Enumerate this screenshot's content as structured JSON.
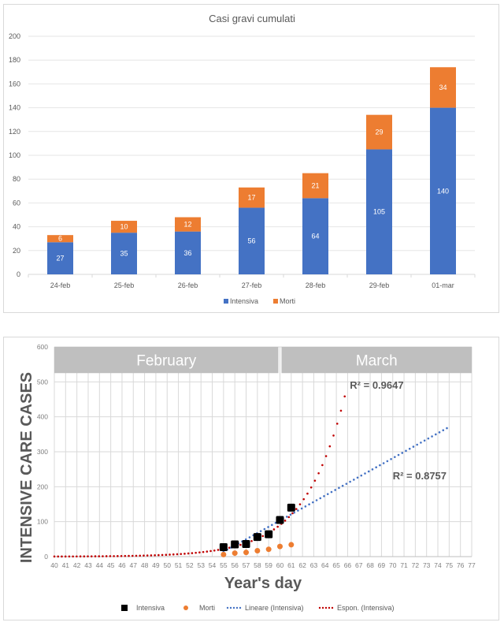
{
  "chart_data": [
    {
      "type": "bar",
      "stacked": true,
      "title": "Casi gravi cumulati",
      "xlabel": "",
      "ylabel": "",
      "ylim": [
        0,
        200
      ],
      "yticks": [
        0,
        20,
        40,
        60,
        80,
        100,
        120,
        140,
        160,
        180,
        200
      ],
      "grid": true,
      "legend_position": "bottom",
      "categories": [
        "24-feb",
        "25-feb",
        "26-feb",
        "27-feb",
        "28-feb",
        "29-feb",
        "01-mar"
      ],
      "series": [
        {
          "name": "Intensiva",
          "color": "#4472c4",
          "values": [
            27,
            35,
            36,
            56,
            64,
            105,
            140
          ]
        },
        {
          "name": "Morti",
          "color": "#ed7d31",
          "values": [
            6,
            10,
            12,
            17,
            21,
            29,
            34
          ]
        }
      ]
    },
    {
      "type": "scatter",
      "title": "",
      "xlabel": "Year's day",
      "ylabel": "INTENSIVE CARE CASES",
      "xlim": [
        40,
        77
      ],
      "ylim": [
        0,
        600
      ],
      "xticks": [
        40,
        41,
        42,
        43,
        44,
        45,
        46,
        47,
        48,
        49,
        50,
        51,
        52,
        53,
        54,
        55,
        56,
        57,
        58,
        59,
        60,
        61,
        62,
        63,
        64,
        65,
        66,
        67,
        68,
        69,
        70,
        71,
        72,
        73,
        74,
        75,
        76,
        77
      ],
      "yticks": [
        0,
        100,
        200,
        300,
        400,
        500,
        600
      ],
      "grid": true,
      "legend_position": "bottom",
      "month_bands": [
        {
          "label": "February",
          "from": 40,
          "to": 60
        },
        {
          "label": "March",
          "from": 60,
          "to": 77
        }
      ],
      "series": [
        {
          "name": "Intensiva",
          "marker": "square",
          "color": "#000000",
          "x": [
            55,
            56,
            57,
            58,
            59,
            60,
            61
          ],
          "y": [
            27,
            35,
            36,
            56,
            64,
            105,
            140
          ]
        },
        {
          "name": "Morti",
          "marker": "circle",
          "color": "#ed7d31",
          "x": [
            55,
            56,
            57,
            58,
            59,
            60,
            61
          ],
          "y": [
            6,
            10,
            12,
            17,
            21,
            29,
            34
          ]
        }
      ],
      "trendlines": [
        {
          "name": "Lineare (Intensiva)",
          "kind": "linear",
          "color": "#4472c4",
          "x_range": [
            55,
            75
          ],
          "y_range": [
            14,
            371
          ],
          "r2_label": "R² = 0.8757"
        },
        {
          "name": "Espon. (Intensiva)",
          "kind": "exponential",
          "color": "#c00000",
          "x_range": [
            40,
            66
          ],
          "y_at_55": 22,
          "y_at_61": 120,
          "y_at_66": 500,
          "r2_label": "R² = 0.9647"
        }
      ]
    }
  ]
}
